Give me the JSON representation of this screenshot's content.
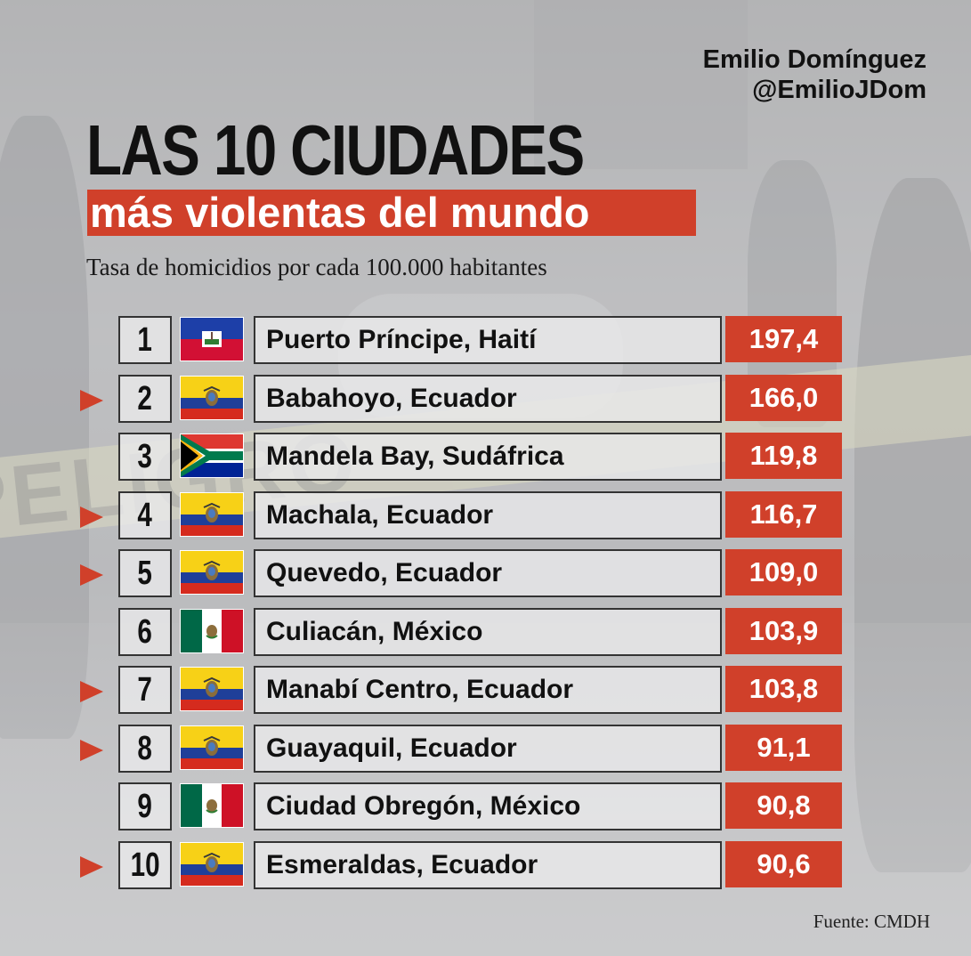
{
  "author": {
    "name": "Emilio Domínguez",
    "handle": "@EmilioJDom"
  },
  "title": "LAS 10 CIUDADES",
  "subtitle": "más violentas del mundo",
  "caption": "Tasa de homicidios por cada 100.000 habitantes",
  "source": "Fuente: CMDH",
  "background_text": "PELIGRO",
  "colors": {
    "accent": "#d0402a",
    "text": "#111111"
  },
  "chart_data": {
    "type": "bar",
    "title": "LAS 10 CIUDADES más violentas del mundo",
    "ylabel": "Tasa de homicidios por cada 100.000 habitantes",
    "categories": [
      "Puerto Príncipe, Haití",
      "Babahoyo, Ecuador",
      "Mandela Bay, Sudáfrica",
      "Machala, Ecuador",
      "Quevedo, Ecuador",
      "Culiacán, México",
      "Manabí Centro, Ecuador",
      "Guayaquil, Ecuador",
      "Ciudad Obregón, México",
      "Esmeraldas, Ecuador"
    ],
    "values": [
      197.4,
      166.0,
      119.8,
      116.7,
      109.0,
      103.9,
      103.8,
      91.1,
      90.8,
      90.6
    ],
    "rows": [
      {
        "rank": "1",
        "city": "Puerto Príncipe, Haití",
        "value_label": "197,4",
        "flag": "haiti-flag-icon",
        "highlight": false
      },
      {
        "rank": "2",
        "city": "Babahoyo, Ecuador",
        "value_label": "166,0",
        "flag": "ecuador-flag-icon",
        "highlight": true
      },
      {
        "rank": "3",
        "city": "Mandela Bay, Sudáfrica",
        "value_label": "119,8",
        "flag": "south-africa-flag-icon",
        "highlight": false
      },
      {
        "rank": "4",
        "city": "Machala, Ecuador",
        "value_label": "116,7",
        "flag": "ecuador-flag-icon",
        "highlight": true
      },
      {
        "rank": "5",
        "city": "Quevedo, Ecuador",
        "value_label": "109,0",
        "flag": "ecuador-flag-icon",
        "highlight": true
      },
      {
        "rank": "6",
        "city": "Culiacán, México",
        "value_label": "103,9",
        "flag": "mexico-flag-icon",
        "highlight": false
      },
      {
        "rank": "7",
        "city": "Manabí Centro, Ecuador",
        "value_label": "103,8",
        "flag": "ecuador-flag-icon",
        "highlight": true
      },
      {
        "rank": "8",
        "city": "Guayaquil, Ecuador",
        "value_label": "91,1",
        "flag": "ecuador-flag-icon",
        "highlight": true
      },
      {
        "rank": "9",
        "city": "Ciudad Obregón, México",
        "value_label": "90,8",
        "flag": "mexico-flag-icon",
        "highlight": false
      },
      {
        "rank": "10",
        "city": "Esmeraldas, Ecuador",
        "value_label": "90,6",
        "flag": "ecuador-flag-icon",
        "highlight": true
      }
    ],
    "legend": "none",
    "grid": false
  }
}
